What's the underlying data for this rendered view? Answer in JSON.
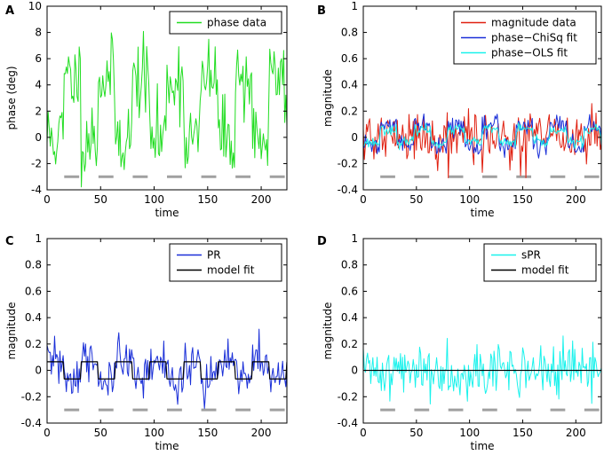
{
  "figure": {
    "colors": {
      "green": "#22dd22",
      "red": "#e02010",
      "blue": "#1a2fd8",
      "cyan": "#19f2ec",
      "black": "#000000",
      "gray": "#a0a0a0"
    }
  },
  "chart_data": [
    {
      "id": "A",
      "letter": "A",
      "type": "line",
      "xlabel": "time",
      "ylabel": "phase (deg)",
      "xlim": [
        0,
        224
      ],
      "ylim": [
        -4,
        10
      ],
      "xticks": [
        0,
        50,
        100,
        150,
        200
      ],
      "yticks": [
        -4,
        -2,
        0,
        2,
        4,
        6,
        8,
        10
      ],
      "grayBar": {
        "y": -3,
        "start": 16,
        "period": 32,
        "len": 14,
        "count": 7
      },
      "series": [
        {
          "name": "phase data",
          "color": "#22dd22",
          "gen": {
            "kind": "square",
            "base": 0,
            "amp": 4.5,
            "high_offset": 16,
            "noise": 1.5,
            "seed": 11
          }
        }
      ]
    },
    {
      "id": "B",
      "letter": "B",
      "type": "line",
      "xlabel": "time",
      "ylabel": "magnitude",
      "xlim": [
        0,
        224
      ],
      "ylim": [
        -0.4,
        1
      ],
      "xticks": [
        0,
        50,
        100,
        150,
        200
      ],
      "yticks": [
        -0.4,
        -0.2,
        0,
        0.2,
        0.4,
        0.6,
        0.8,
        1
      ],
      "grayBar": {
        "y": -0.3,
        "start": 16,
        "period": 32,
        "len": 14,
        "count": 7
      },
      "series": [
        {
          "name": "magnitude data",
          "color": "#e02010",
          "gen": {
            "kind": "noise",
            "base": 0,
            "noise": 0.1,
            "seed": 21
          }
        },
        {
          "name": "phase−ChiSq fit",
          "color": "#1a2fd8",
          "gen": {
            "kind": "square",
            "base": -0.06,
            "amp": 0.15,
            "high_offset": 16,
            "noise": 0.035,
            "seed": 22
          }
        },
        {
          "name": "phase−OLS fit",
          "color": "#19f2ec",
          "gen": {
            "kind": "square",
            "base": -0.04,
            "amp": 0.1,
            "high_offset": 16,
            "noise": 0.02,
            "seed": 23
          }
        }
      ]
    },
    {
      "id": "C",
      "letter": "C",
      "type": "line",
      "xlabel": "time",
      "ylabel": "magnitude",
      "xlim": [
        0,
        224
      ],
      "ylim": [
        -0.4,
        1
      ],
      "xticks": [
        0,
        50,
        100,
        150,
        200
      ],
      "yticks": [
        -0.4,
        -0.2,
        0,
        0.2,
        0.4,
        0.6,
        0.8,
        1
      ],
      "grayBar": {
        "y": -0.3,
        "start": 16,
        "period": 32,
        "len": 14,
        "count": 7
      },
      "series": [
        {
          "name": "PR",
          "color": "#1a2fd8",
          "gen": {
            "kind": "square",
            "base": 0.065,
            "amp": -0.13,
            "high_offset": 16,
            "noise": 0.09,
            "seed": 31
          }
        },
        {
          "name": "model fit",
          "color": "#000000",
          "gen": {
            "kind": "square",
            "base": 0.065,
            "amp": -0.13,
            "high_offset": 16,
            "noise": 0,
            "seed": 32
          }
        }
      ]
    },
    {
      "id": "D",
      "letter": "D",
      "type": "line",
      "xlabel": "time",
      "ylabel": "magnitude",
      "xlim": [
        0,
        224
      ],
      "ylim": [
        -0.4,
        1
      ],
      "xticks": [
        0,
        50,
        100,
        150,
        200
      ],
      "yticks": [
        -0.4,
        -0.2,
        0,
        0.2,
        0.4,
        0.6,
        0.8,
        1
      ],
      "grayBar": {
        "y": -0.3,
        "start": 16,
        "period": 32,
        "len": 14,
        "count": 7
      },
      "series": [
        {
          "name": "sPR",
          "color": "#19f2ec",
          "gen": {
            "kind": "noise",
            "base": 0,
            "noise": 0.1,
            "seed": 41
          }
        },
        {
          "name": "model fit",
          "color": "#000000",
          "gen": {
            "kind": "flat",
            "base": 0
          }
        }
      ]
    }
  ]
}
